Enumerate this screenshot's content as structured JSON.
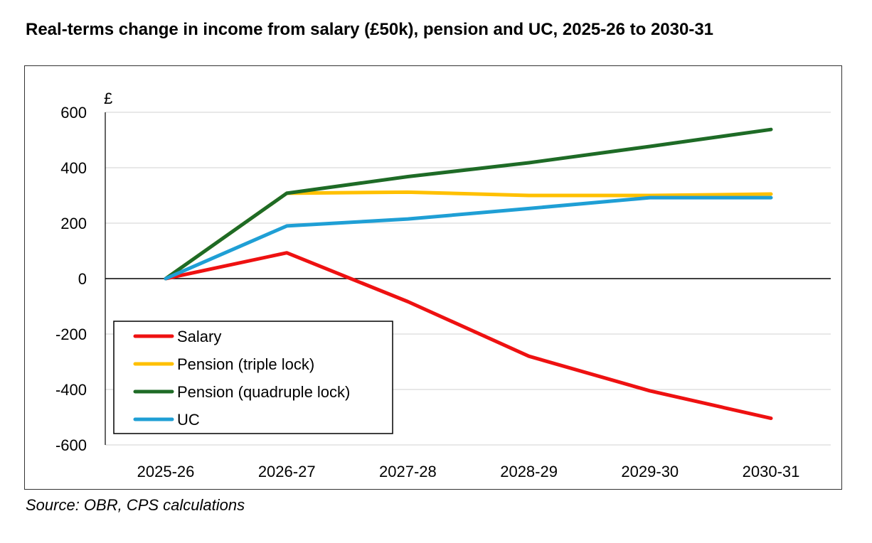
{
  "chart_data": {
    "type": "line",
    "title": "Real-terms change in income from salary (£50k), pension and UC, 2025-26 to 2030-31",
    "ylabel": "£",
    "xlabel": "",
    "categories": [
      "2025-26",
      "2026-27",
      "2027-28",
      "2028-29",
      "2029-30",
      "2030-31"
    ],
    "ylim": [
      -600,
      600
    ],
    "yticks": [
      600,
      400,
      200,
      0,
      -200,
      -400,
      -600
    ],
    "ytick_labels": [
      "600",
      "400",
      "200",
      "0",
      "-200",
      "-400",
      "-600"
    ],
    "grid": true,
    "legend_position": "bottom-left",
    "series": [
      {
        "name": "Salary",
        "color": "#ee1111",
        "values": [
          0,
          93,
          -83,
          -280,
          -405,
          -504
        ]
      },
      {
        "name": "Pension (triple lock)",
        "color": "#ffc000",
        "values": [
          0,
          308,
          312,
          300,
          300,
          305
        ]
      },
      {
        "name": "Pension (quadruple lock)",
        "color": "#1e6b26",
        "values": [
          0,
          308,
          368,
          418,
          477,
          538
        ]
      },
      {
        "name": "UC",
        "color": "#1f9fd5",
        "values": [
          0,
          190,
          215,
          253,
          292,
          292
        ]
      }
    ]
  },
  "source": "Source: OBR, CPS calculations"
}
